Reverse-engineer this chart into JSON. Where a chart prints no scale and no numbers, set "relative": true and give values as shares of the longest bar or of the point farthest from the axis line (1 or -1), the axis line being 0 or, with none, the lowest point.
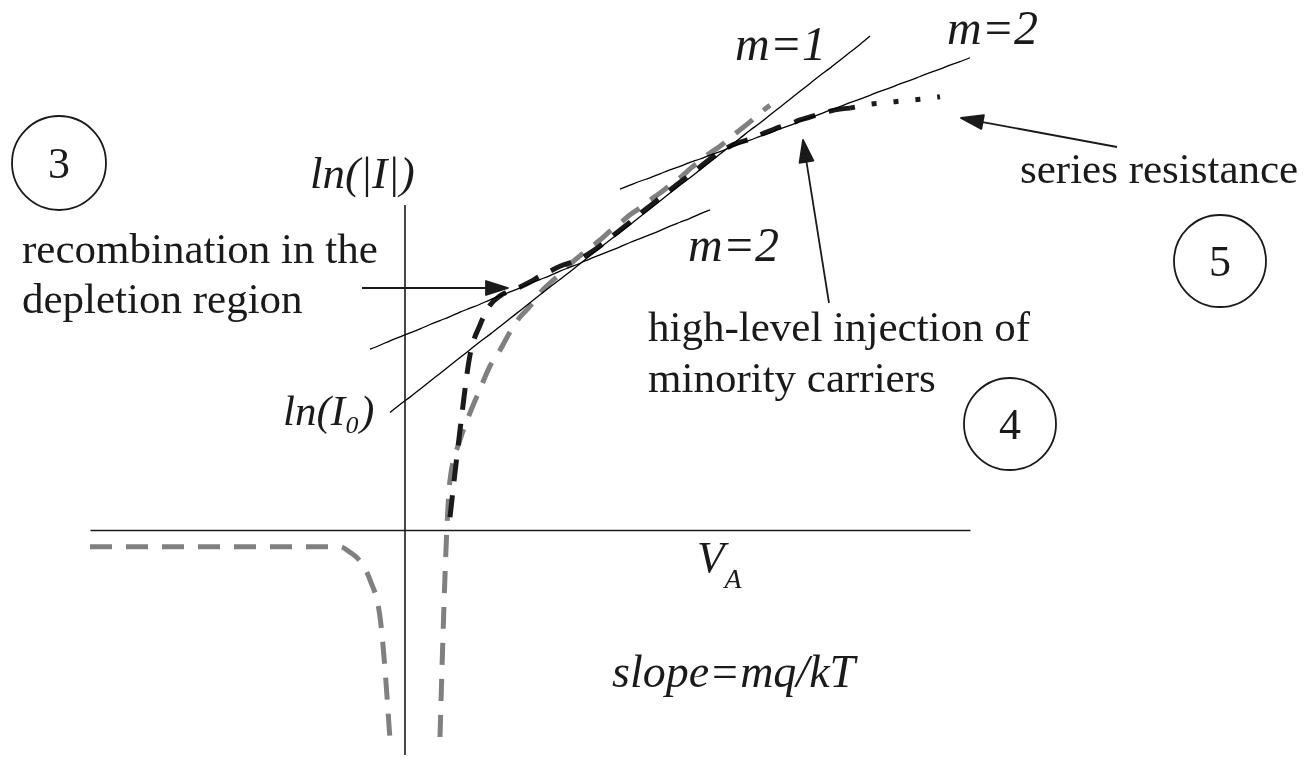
{
  "chart_data": {
    "type": "line",
    "relative": true,
    "xlabel": "V$_{A}$",
    "ylabel": "ln(|I|)",
    "categories": [
      null,
      null,
      null,
      null,
      null,
      null,
      null,
      null,
      null,
      null,
      null,
      null,
      null,
      null,
      null,
      null,
      null,
      null,
      null,
      null,
      null,
      null,
      null,
      null,
      null,
      null,
      null,
      null,
      null,
      null,
      null,
      null,
      null,
      null,
      null,
      null,
      null,
      null,
      null,
      null,
      null,
      null,
      null,
      null,
      null,
      null,
      null,
      null,
      null,
      null,
      null,
      null,
      null,
      null,
      null,
      null,
      null,
      null,
      null,
      null,
      null,
      null,
      null,
      null,
      null,
      null,
      null,
      null,
      null,
      null,
      null,
      null,
      null,
      null,
      null,
      null,
      null,
      null,
      null,
      null,
      null,
      null,
      null,
      null,
      null,
      null,
      null,
      null,
      null
    ],
    "series": [
      {
        "color": "#808080",
        "line_style": "dashed",
        "values": [
          -0.034,
          -0.034,
          -0.034,
          -0.034,
          -0.034,
          -0.034,
          -0.034,
          -0.034,
          -0.034,
          -0.034,
          -0.034,
          -0.034,
          -0.034,
          -0.034,
          -0.034,
          -0.034,
          -0.034,
          -0.034,
          -0.034,
          -0.034,
          -0.034,
          -0.034,
          -0.034,
          -0.034,
          -0.034,
          -0.034,
          -0.045,
          -0.063,
          -0.101,
          -0.176,
          -0.425,
          null,
          null,
          null,
          null,
          -0.419,
          0.101,
          0.182,
          0.237,
          0.285,
          0.332,
          0.364,
          0.401,
          0.431,
          0.453,
          0.48,
          0.5,
          0.518,
          0.538,
          0.555,
          0.571,
          0.587,
          0.605,
          0.621,
          0.638,
          0.652,
          0.668,
          0.682,
          0.698,
          0.713,
          0.731,
          0.747,
          0.763,
          0.777,
          0.794,
          0.81,
          0.826,
          0.844,
          0.86,
          null,
          null,
          null,
          null,
          null,
          null,
          null,
          null,
          null,
          null,
          null,
          null,
          null,
          null,
          null,
          null,
          null,
          null,
          null,
          null
        ]
      },
      {
        "color": "#1a1a1a",
        "line_style": "dashed",
        "values": [
          null,
          null,
          null,
          null,
          null,
          null,
          null,
          null,
          null,
          null,
          null,
          null,
          null,
          null,
          null,
          null,
          null,
          null,
          null,
          null,
          null,
          null,
          null,
          null,
          null,
          null,
          null,
          null,
          null,
          null,
          null,
          null,
          null,
          null,
          null,
          null,
          0.026,
          0.202,
          0.354,
          0.415,
          0.455,
          0.474,
          0.484,
          0.492,
          0.502,
          0.514,
          0.524,
          0.534,
          0.541,
          0.549,
          0.561,
          0.575,
          0.591,
          0.607,
          0.623,
          0.64,
          0.656,
          0.672,
          0.688,
          0.704,
          0.719,
          0.735,
          0.751,
          0.765,
          0.777,
          0.785,
          0.791,
          0.8,
          0.808,
          0.816,
          0.822,
          0.83,
          0.836,
          0.842,
          0.848,
          0.852,
          0.854,
          null,
          null,
          null,
          null,
          null,
          null,
          null,
          null,
          null,
          null,
          null,
          null
        ]
      },
      {
        "color": "#1a1a1a",
        "line_style": "dotted",
        "values": [
          null,
          null,
          null,
          null,
          null,
          null,
          null,
          null,
          null,
          null,
          null,
          null,
          null,
          null,
          null,
          null,
          null,
          null,
          null,
          null,
          null,
          null,
          null,
          null,
          null,
          null,
          null,
          null,
          null,
          null,
          null,
          null,
          null,
          null,
          null,
          null,
          null,
          null,
          null,
          null,
          null,
          null,
          null,
          null,
          null,
          null,
          null,
          null,
          null,
          null,
          null,
          null,
          null,
          null,
          null,
          null,
          null,
          null,
          null,
          null,
          null,
          null,
          null,
          null,
          null,
          null,
          null,
          null,
          null,
          null,
          null,
          null,
          null,
          null,
          null,
          null,
          0.854,
          0.858,
          0.862,
          0.864,
          0.866,
          0.868,
          0.87,
          0.872,
          0.874,
          0.877,
          null,
          null,
          null
        ]
      },
      {
        "color": "#000000",
        "line_style": "solid",
        "values": [
          null,
          null,
          null,
          null,
          null,
          null,
          null,
          null,
          null,
          null,
          null,
          null,
          null,
          null,
          null,
          null,
          null,
          null,
          null,
          null,
          null,
          null,
          null,
          null,
          null,
          null,
          null,
          null,
          0.366,
          0.374,
          0.383,
          0.391,
          0.399,
          0.407,
          0.416,
          0.424,
          0.432,
          0.441,
          0.449,
          0.457,
          0.466,
          0.474,
          0.482,
          0.49,
          0.499,
          0.507,
          0.515,
          0.524,
          0.532,
          0.54,
          0.549,
          0.557,
          0.565,
          0.573,
          0.582,
          0.59,
          0.598,
          0.606,
          0.615,
          0.623,
          0.631,
          0.64,
          0.648,
          null,
          null,
          null,
          null,
          null,
          null,
          null,
          null,
          null,
          null,
          null,
          null,
          null,
          null,
          null,
          null,
          null,
          null,
          null,
          null,
          null,
          null,
          null,
          null,
          null,
          null
        ]
      },
      {
        "color": "#000000",
        "line_style": "solid",
        "values": [
          null,
          null,
          null,
          null,
          null,
          null,
          null,
          null,
          null,
          null,
          null,
          null,
          null,
          null,
          null,
          null,
          null,
          null,
          null,
          null,
          null,
          null,
          null,
          null,
          null,
          null,
          null,
          null,
          null,
          null,
          0.238,
          0.254,
          0.269,
          0.285,
          0.301,
          0.317,
          0.333,
          0.349,
          0.365,
          0.381,
          0.396,
          0.412,
          0.428,
          0.444,
          0.46,
          0.476,
          0.492,
          0.507,
          0.523,
          0.539,
          0.555,
          0.571,
          0.587,
          0.602,
          0.618,
          0.634,
          0.65,
          0.666,
          0.682,
          0.698,
          0.713,
          0.729,
          0.745,
          0.761,
          0.777,
          0.793,
          0.809,
          0.824,
          0.84,
          0.856,
          0.872,
          0.888,
          0.904,
          0.92,
          0.935,
          0.951,
          0.967,
          0.983,
          1,
          null,
          null,
          null,
          null,
          null,
          null,
          null,
          null,
          null,
          null
        ]
      },
      {
        "color": "#000000",
        "line_style": "solid",
        "values": [
          null,
          null,
          null,
          null,
          null,
          null,
          null,
          null,
          null,
          null,
          null,
          null,
          null,
          null,
          null,
          null,
          null,
          null,
          null,
          null,
          null,
          null,
          null,
          null,
          null,
          null,
          null,
          null,
          null,
          null,
          null,
          null,
          null,
          null,
          null,
          null,
          null,
          null,
          null,
          null,
          null,
          null,
          null,
          null,
          null,
          null,
          null,
          null,
          null,
          null,
          null,
          null,
          null,
          0.69,
          0.698,
          0.706,
          0.713,
          0.721,
          0.729,
          0.736,
          0.744,
          0.751,
          0.759,
          0.766,
          0.774,
          0.782,
          0.789,
          0.797,
          0.804,
          0.812,
          0.819,
          0.827,
          0.835,
          0.842,
          0.85,
          0.857,
          0.865,
          0.872,
          0.88,
          0.888,
          0.895,
          0.903,
          0.91,
          0.918,
          0.926,
          0.933,
          0.941,
          0.948,
          0.956
        ]
      }
    ],
    "annotations": [
      "m=1",
      "m=2",
      "m=2",
      "ln(I₀)",
      "recombination in the depletion region",
      "high-level injection of minority carriers",
      "series resistance",
      "slope=mq/kT",
      "3",
      "4",
      "5"
    ]
  }
}
